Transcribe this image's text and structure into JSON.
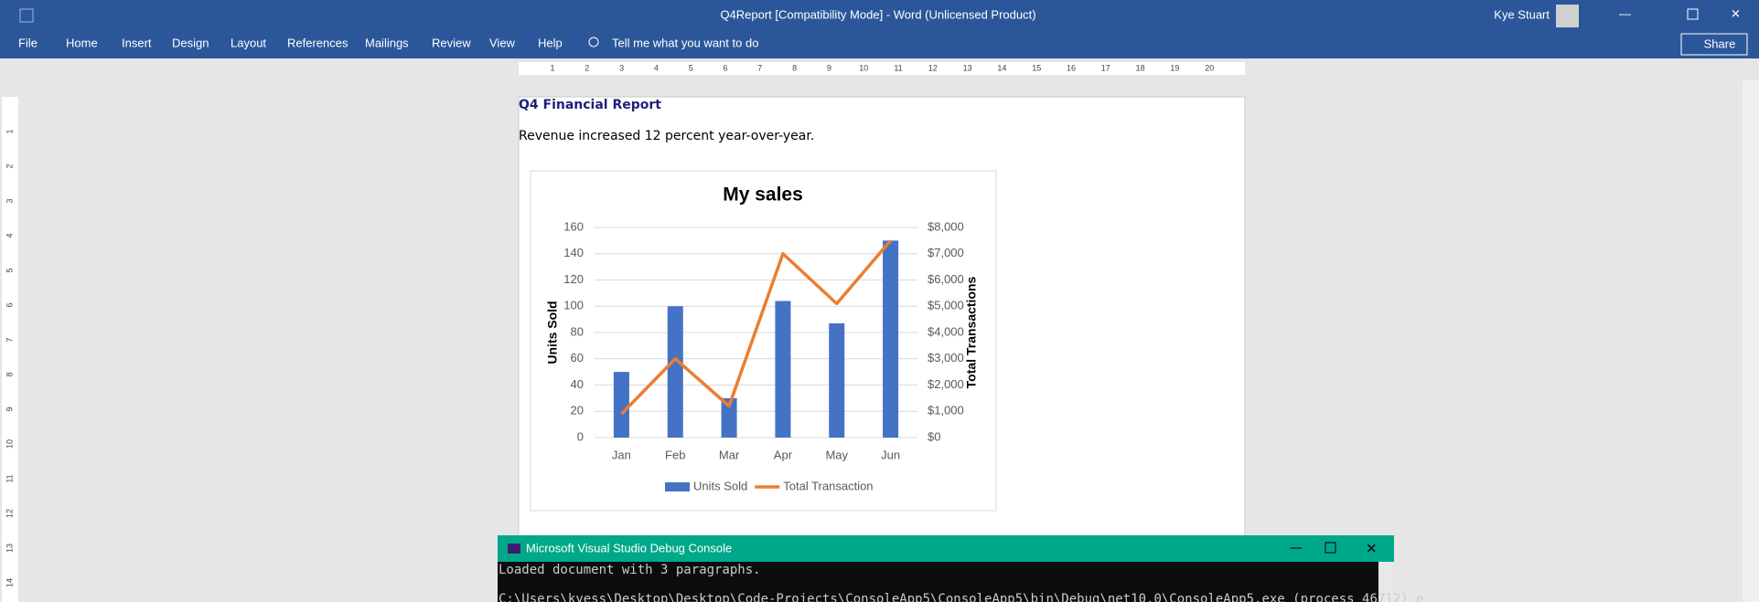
{
  "window": {
    "title": "Q4Report [Compatibility Mode]  -  Word (Unlicensed Product)",
    "user": "Kye Stuart",
    "share": "Share"
  },
  "menu": [
    "File",
    "Home",
    "Insert",
    "Design",
    "Layout",
    "References",
    "Mailings",
    "Review",
    "View",
    "Help"
  ],
  "tell_me": "Tell me what you want to do",
  "ruler": [
    1,
    2,
    3,
    4,
    5,
    6,
    7,
    8,
    9,
    10,
    11,
    12,
    13,
    14,
    15,
    16,
    17,
    18,
    19,
    20
  ],
  "vertical_ruler": [
    1,
    2,
    3,
    4,
    5,
    6,
    7,
    8,
    9,
    10,
    11,
    12,
    13,
    14
  ],
  "document": {
    "heading": "Q4 Financial Report",
    "paragraph": "Revenue increased 12 percent year-over-year."
  },
  "chart_data": {
    "type": "bar",
    "title": "My sales",
    "categories": [
      "Jan",
      "Feb",
      "Mar",
      "Apr",
      "May",
      "Jun"
    ],
    "series": [
      {
        "name": "Units Sold",
        "color": "#4472c4",
        "values": [
          50,
          100,
          30,
          104,
          87,
          150
        ]
      },
      {
        "name": "Total Transaction",
        "color": "#ed7d31",
        "type": "line",
        "axis": "y2",
        "values": [
          900,
          3000,
          1200,
          7000,
          5100,
          7500
        ]
      }
    ],
    "ylabel": "Units Sold",
    "y2label": "Total Transactions",
    "ylim": [
      0,
      160
    ],
    "yticks": [
      0,
      20,
      40,
      60,
      80,
      100,
      120,
      140,
      160
    ],
    "y2lim": [
      0,
      8000
    ],
    "y2ticks": [
      {
        "value": 0,
        "label": "$0"
      },
      {
        "value": 1000,
        "label": "$1,000"
      },
      {
        "value": 2000,
        "label": "$2,000"
      },
      {
        "value": 3000,
        "label": "$3,000"
      },
      {
        "value": 4000,
        "label": "$4,000"
      },
      {
        "value": 5000,
        "label": "$5,000"
      },
      {
        "value": 6000,
        "label": "$6,000"
      },
      {
        "value": 7000,
        "label": "$7,000"
      },
      {
        "value": 8000,
        "label": "$8,000"
      }
    ],
    "grid": true,
    "legend": "bottom"
  },
  "console": {
    "title": "Microsoft Visual Studio Debug Console",
    "lines": [
      "Loaded document with 3 paragraphs.",
      "C:\\Users\\kyess\\Desktop\\Desktop\\Code-Projects\\ConsoleApp5\\ConsoleApp5\\bin\\Debug\\net10.0\\ConsoleApp5.exe (process 46712) e"
    ]
  }
}
